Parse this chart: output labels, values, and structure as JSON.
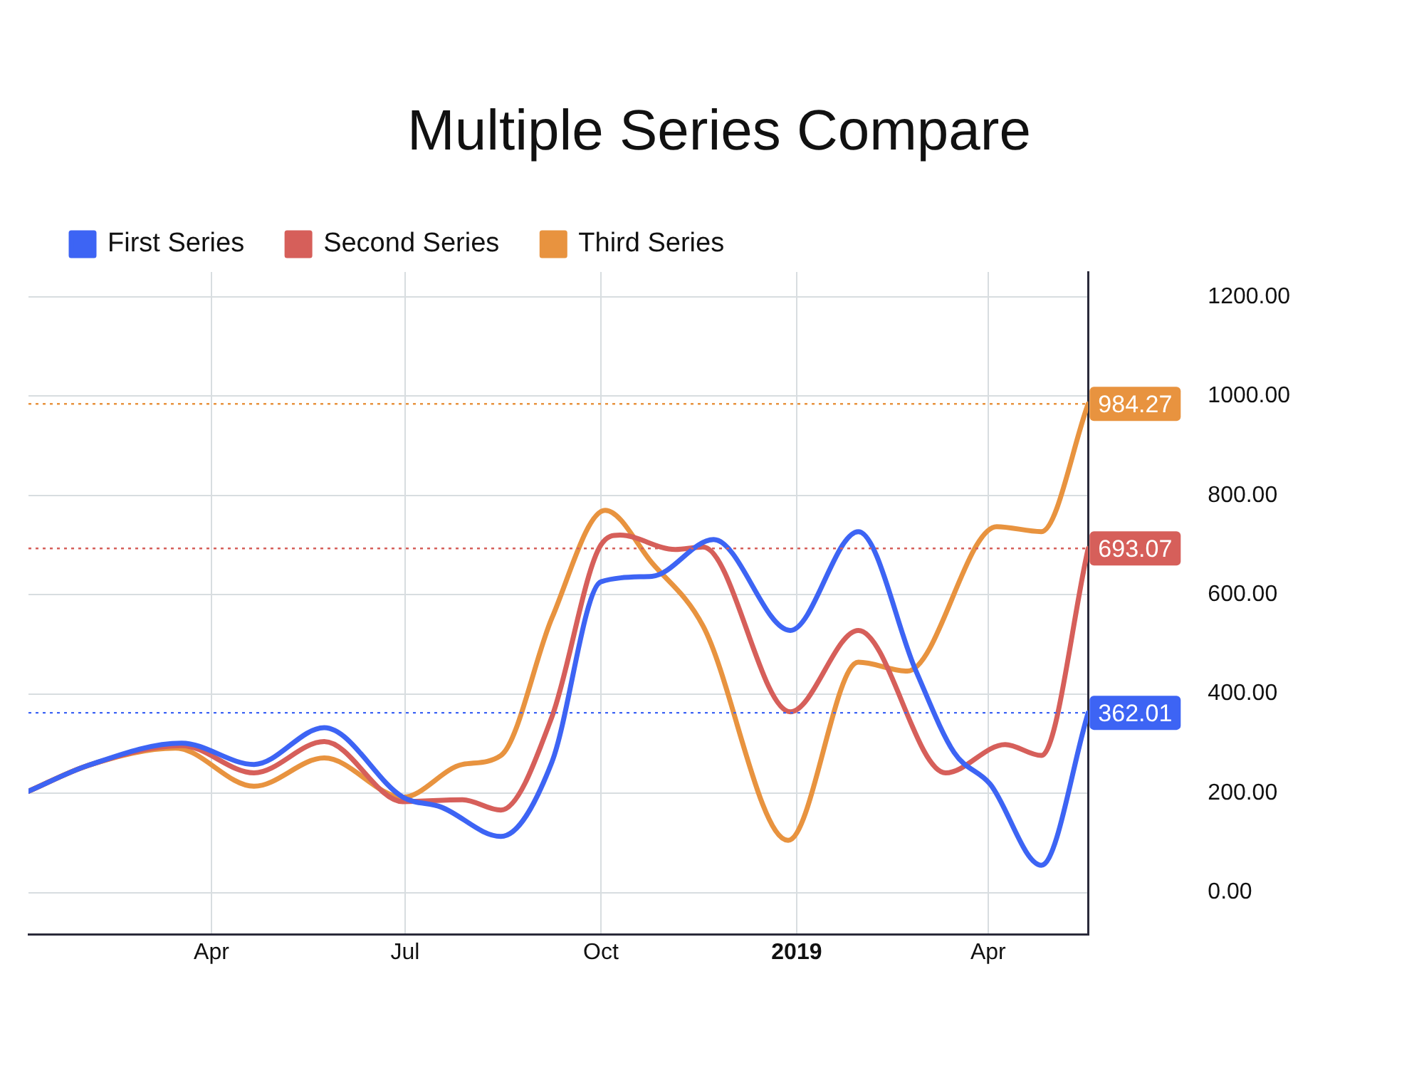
{
  "chart_data": {
    "type": "line",
    "title": "Multiple Series Compare",
    "series": [
      {
        "name": "First Series",
        "color": "#3d64f4",
        "x": [
          "2018-01-05",
          "2018-02-02",
          "2018-03-18",
          "2018-04-21",
          "2018-05-24",
          "2018-06-30",
          "2018-07-18",
          "2018-08-15",
          "2018-09-08",
          "2018-10-01",
          "2018-10-25",
          "2018-11-23",
          "2018-12-29",
          "2019-01-30",
          "2019-02-26",
          "2019-03-16",
          "2019-04-02",
          "2019-04-26",
          "2019-05-18"
        ],
        "values": [
          204,
          256,
          301,
          258,
          332,
          192,
          172,
          113,
          263,
          626,
          637,
          711,
          528,
          727,
          447,
          282,
          218,
          55,
          362.01
        ]
      },
      {
        "name": "Second Series",
        "color": "#d65f5a",
        "x": [
          "2018-01-05",
          "2018-02-02",
          "2018-03-18",
          "2018-04-21",
          "2018-05-24",
          "2018-06-30",
          "2018-07-28",
          "2018-08-15",
          "2018-09-08",
          "2018-10-01",
          "2018-10-10",
          "2018-11-05",
          "2018-11-18",
          "2018-12-29",
          "2019-01-30",
          "2019-03-12",
          "2019-04-09",
          "2019-04-26",
          "2019-05-18"
        ],
        "values": [
          204,
          256,
          296,
          241,
          304,
          183,
          187,
          166,
          354,
          700,
          720,
          691,
          696,
          364,
          528,
          241,
          298,
          276,
          693.07
        ]
      },
      {
        "name": "Third Series",
        "color": "#e8933f",
        "x": [
          "2018-01-05",
          "2018-02-02",
          "2018-03-15",
          "2018-04-21",
          "2018-05-24",
          "2018-06-30",
          "2018-07-28",
          "2018-08-15",
          "2018-09-08",
          "2018-10-03",
          "2018-10-25",
          "2018-11-18",
          "2018-12-28",
          "2019-01-30",
          "2019-02-22",
          "2019-04-05",
          "2019-04-26",
          "2019-05-18"
        ],
        "values": [
          204,
          256,
          291,
          214,
          271,
          192,
          258,
          276,
          553,
          770,
          664,
          537,
          105,
          464,
          446,
          737,
          727,
          984.27
        ]
      }
    ],
    "xlim": [
      "2018-01-05",
      "2019-05-18"
    ],
    "xticks": [
      {
        "value": "2018-04-01",
        "label": "Apr"
      },
      {
        "value": "2018-07-01",
        "label": "Jul"
      },
      {
        "value": "2018-10-01",
        "label": "Oct"
      },
      {
        "value": "2019-01-01",
        "label": "2019"
      },
      {
        "value": "2019-04-01",
        "label": "Apr"
      }
    ],
    "ylim": [
      -85,
      1250
    ],
    "yticks": [
      {
        "value": 0,
        "label": "0.00"
      },
      {
        "value": 200,
        "label": "200.00"
      },
      {
        "value": 400,
        "label": "400.00"
      },
      {
        "value": 600,
        "label": "600.00"
      },
      {
        "value": 800,
        "label": "800.00"
      },
      {
        "value": 1000,
        "label": "1000.00"
      },
      {
        "value": 1200,
        "label": "1200.00"
      }
    ],
    "ref_lines": [
      {
        "axis": "y",
        "value": 984.27,
        "label": "984.27",
        "color": "#e8933f",
        "line_style": "dotted"
      },
      {
        "axis": "y",
        "value": 693.07,
        "label": "693.07",
        "color": "#d65f5a",
        "line_style": "dotted"
      },
      {
        "axis": "y",
        "value": 362.01,
        "label": "362.01",
        "color": "#3d64f4",
        "line_style": "dotted"
      }
    ],
    "grid": true,
    "legend": "top left"
  }
}
